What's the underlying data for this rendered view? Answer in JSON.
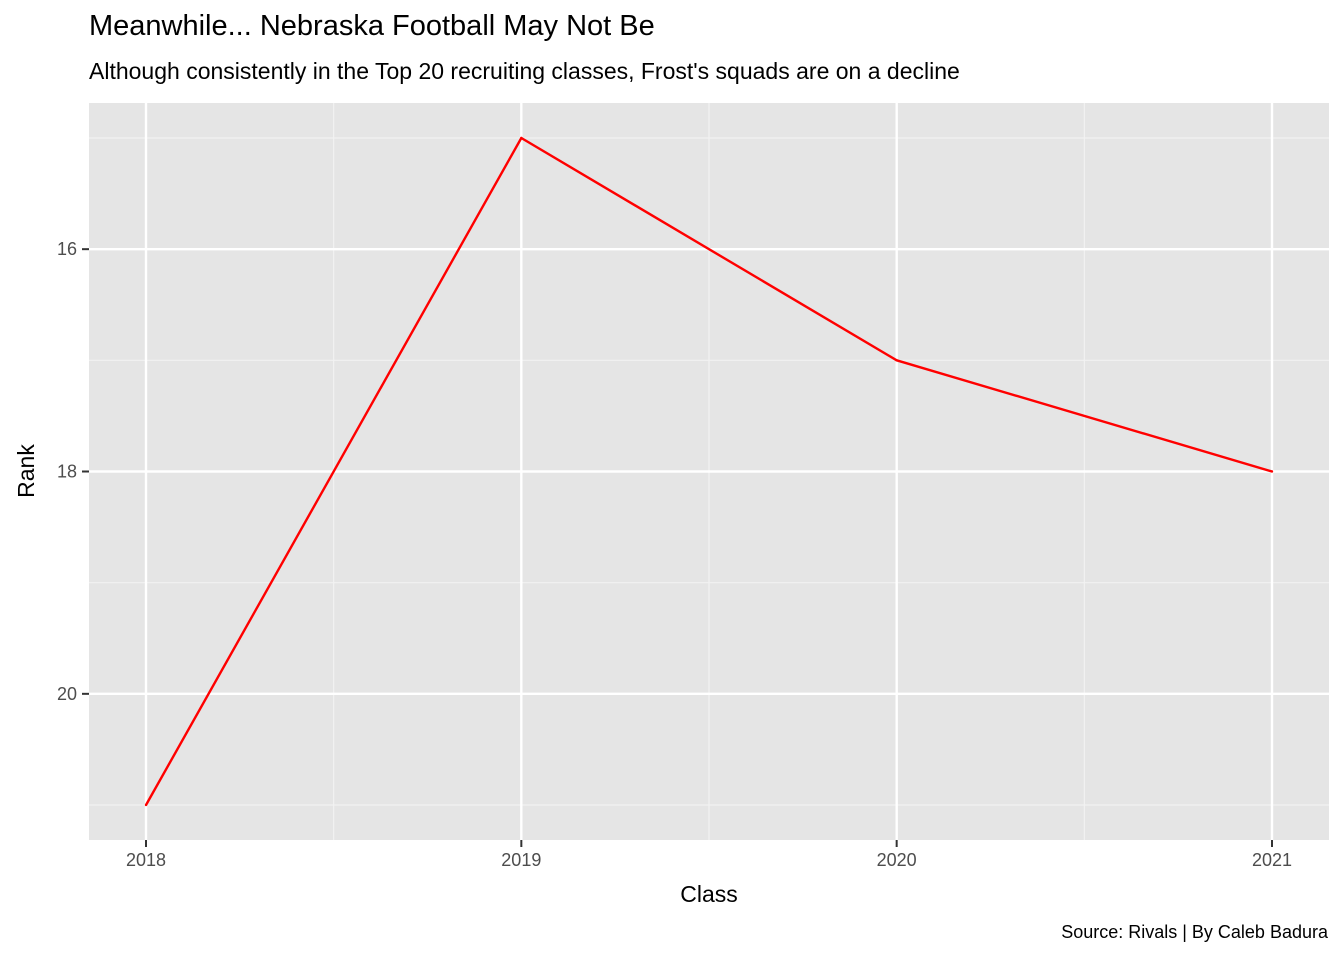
{
  "chart_data": {
    "type": "line",
    "title": "Meanwhile... Nebraska Football May Not Be",
    "subtitle": "Although consistently in the Top 20 recruiting classes, Frost's squads are on a decline",
    "caption": "Source: Rivals | By Caleb Badura",
    "xlabel": "Class",
    "ylabel": "Rank",
    "x": [
      2018,
      2019,
      2020,
      2021
    ],
    "values": [
      21,
      15,
      17,
      18
    ],
    "x_ticks": [
      "2018",
      "2019",
      "2020",
      "2021"
    ],
    "y_ticks": [
      "16",
      "18",
      "20"
    ],
    "y_reversed": true,
    "ylim": [
      15,
      21
    ],
    "xlim": [
      2018,
      2021
    ],
    "grid": true,
    "line_color": "#ff0000",
    "panel_color": "#e5e5e5"
  }
}
